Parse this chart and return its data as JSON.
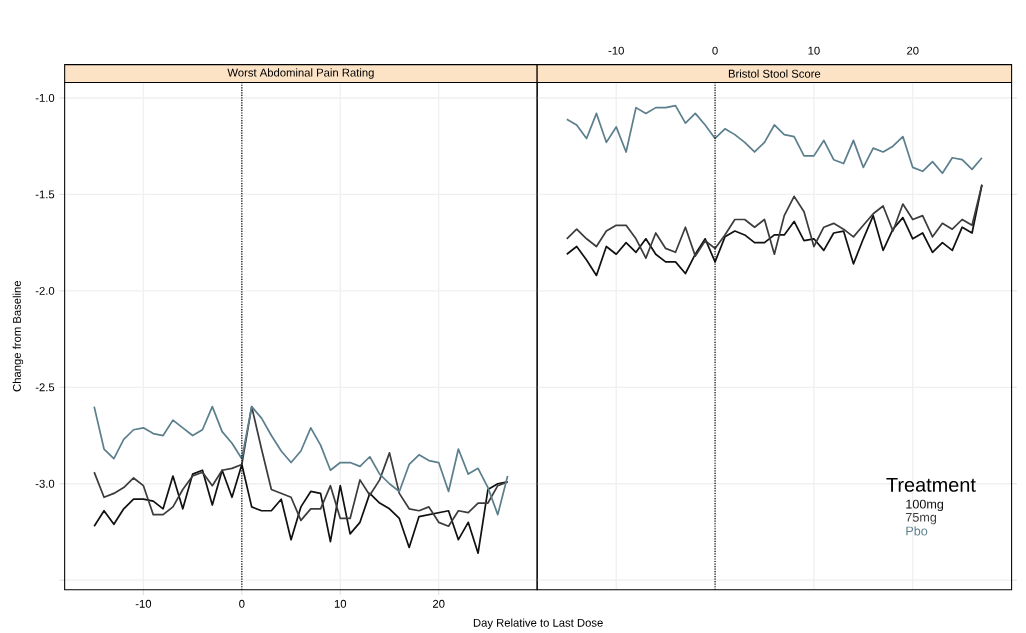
{
  "chart_data": [
    {
      "type": "line",
      "title": "Worst Abdominal Pain Rating",
      "xlabel": "Day Relative to Last Dose",
      "ylabel": "Change from Baseline",
      "x": [
        -15,
        -14,
        -13,
        -12,
        -11,
        -10,
        -9,
        -8,
        -7,
        -6,
        -5,
        -4,
        -3,
        -2,
        -1,
        0,
        1,
        2,
        3,
        4,
        5,
        6,
        7,
        8,
        9,
        10,
        11,
        12,
        13,
        14,
        15,
        16,
        17,
        18,
        19,
        20,
        21,
        22,
        23,
        24,
        25,
        26,
        27
      ],
      "xlim": [
        -18,
        30
      ],
      "xticks": [
        -10,
        0,
        10,
        20
      ],
      "ylim": [
        -3.55,
        -0.92
      ],
      "yticks": [
        {
          "value": -3.5,
          "label": null
        },
        {
          "value": -3.0,
          "label": "-3.0"
        },
        {
          "value": -2.5,
          "label": "-2.5"
        },
        {
          "value": -2.0,
          "label": "-2.0"
        },
        {
          "value": -1.5,
          "label": "-1.5"
        },
        {
          "value": -1.0,
          "label": "-1.0"
        }
      ],
      "grid": true,
      "ref_lines": [
        {
          "axis": "x",
          "value": 0,
          "line_style": "dotted",
          "color": "#000000"
        }
      ],
      "series": [
        {
          "color": "#111111",
          "values": [
            -3.22,
            -3.14,
            -3.21,
            -3.13,
            -3.08,
            -3.08,
            -3.09,
            -3.13,
            -2.96,
            -3.13,
            -2.95,
            -2.93,
            -3.11,
            -2.93,
            -3.07,
            -2.9,
            -3.12,
            -3.14,
            -3.14,
            -3.08,
            -3.29,
            -3.12,
            -3.04,
            -3.05,
            -3.3,
            -3.01,
            -3.26,
            -3.2,
            -3.05,
            -3.1,
            -3.13,
            -3.18,
            -3.33,
            -3.17,
            -3.16,
            -3.15,
            -3.14,
            -3.29,
            -3.2,
            -3.36,
            -3.03,
            -3.0,
            -2.99
          ]
        },
        {
          "color": "#3c3c3c",
          "values": [
            -2.94,
            -3.07,
            -3.05,
            -3.02,
            -2.97,
            -3.01,
            -3.16,
            -3.16,
            -3.12,
            -3.03,
            -2.96,
            -2.94,
            -3.01,
            -2.93,
            -2.92,
            -2.9,
            -2.6,
            -2.82,
            -3.03,
            -3.05,
            -3.07,
            -3.19,
            -3.13,
            -3.13,
            -3.01,
            -3.18,
            -3.18,
            -2.98,
            -3.06,
            -2.98,
            -2.84,
            -3.05,
            -3.13,
            -3.14,
            -3.12,
            -3.2,
            -3.22,
            -3.14,
            -3.15,
            -3.1,
            -3.1,
            -3.01,
            -2.99
          ]
        },
        {
          "color": "#5b7f8c",
          "values": [
            -2.6,
            -2.82,
            -2.87,
            -2.77,
            -2.72,
            -2.71,
            -2.74,
            -2.75,
            -2.67,
            -2.71,
            -2.75,
            -2.72,
            -2.6,
            -2.73,
            -2.79,
            -2.87,
            -2.6,
            -2.66,
            -2.75,
            -2.83,
            -2.89,
            -2.83,
            -2.71,
            -2.8,
            -2.93,
            -2.89,
            -2.89,
            -2.91,
            -2.86,
            -2.95,
            -3.0,
            -3.04,
            -2.9,
            -2.85,
            -2.88,
            -2.89,
            -3.04,
            -2.82,
            -2.95,
            -2.92,
            -3.02,
            -3.16,
            -2.96
          ]
        }
      ]
    },
    {
      "type": "line",
      "title": "Bristol Stool Score",
      "legend_title": "Treatment",
      "legend": "bottom right",
      "x": [
        -15,
        -14,
        -13,
        -12,
        -11,
        -10,
        -9,
        -8,
        -7,
        -6,
        -5,
        -4,
        -3,
        -2,
        -1,
        0,
        1,
        2,
        3,
        4,
        5,
        6,
        7,
        8,
        9,
        10,
        11,
        12,
        13,
        14,
        15,
        16,
        17,
        18,
        19,
        20,
        21,
        22,
        23,
        24,
        25,
        26,
        27
      ],
      "xlim": [
        -18,
        30
      ],
      "xticks": [
        -10,
        0,
        10,
        20
      ],
      "ylim": [
        -3.55,
        -0.92
      ],
      "yticks": [
        {
          "value": -3.5,
          "label": null
        },
        {
          "value": -3.0,
          "label": null
        },
        {
          "value": -2.5,
          "label": null
        },
        {
          "value": -2.0,
          "label": null
        },
        {
          "value": -1.5,
          "label": null
        },
        {
          "value": -1.0,
          "label": null
        }
      ],
      "tick_labels": "x",
      "grid": true,
      "ref_lines": [
        {
          "axis": "x",
          "value": 0,
          "line_style": "dotted",
          "color": "#000000"
        }
      ],
      "series": [
        {
          "name": "100mg",
          "color": "#111111",
          "values": [
            -1.81,
            -1.77,
            -1.84,
            -1.92,
            -1.77,
            -1.81,
            -1.75,
            -1.8,
            -1.73,
            -1.81,
            -1.85,
            -1.85,
            -1.91,
            -1.81,
            -1.73,
            -1.85,
            -1.72,
            -1.69,
            -1.71,
            -1.75,
            -1.75,
            -1.71,
            -1.71,
            -1.64,
            -1.74,
            -1.73,
            -1.79,
            -1.7,
            -1.69,
            -1.86,
            -1.73,
            -1.61,
            -1.79,
            -1.68,
            -1.62,
            -1.73,
            -1.7,
            -1.8,
            -1.75,
            -1.79,
            -1.67,
            -1.7,
            -1.45
          ]
        },
        {
          "name": "75mg",
          "color": "#3c3c3c",
          "values": [
            -1.73,
            -1.68,
            -1.73,
            -1.77,
            -1.69,
            -1.66,
            -1.66,
            -1.73,
            -1.83,
            -1.7,
            -1.78,
            -1.8,
            -1.67,
            -1.82,
            -1.74,
            -1.78,
            -1.71,
            -1.63,
            -1.63,
            -1.67,
            -1.63,
            -1.81,
            -1.61,
            -1.51,
            -1.59,
            -1.77,
            -1.67,
            -1.65,
            -1.68,
            -1.72,
            -1.66,
            -1.6,
            -1.56,
            -1.69,
            -1.55,
            -1.63,
            -1.61,
            -1.72,
            -1.65,
            -1.68,
            -1.63,
            -1.66,
            -1.45
          ]
        },
        {
          "name": "Pbo",
          "color": "#5b7f8c",
          "values": [
            -1.11,
            -1.14,
            -1.21,
            -1.08,
            -1.23,
            -1.15,
            -1.28,
            -1.05,
            -1.08,
            -1.05,
            -1.05,
            -1.04,
            -1.13,
            -1.08,
            -1.14,
            -1.21,
            -1.16,
            -1.19,
            -1.23,
            -1.28,
            -1.23,
            -1.14,
            -1.19,
            -1.2,
            -1.3,
            -1.3,
            -1.22,
            -1.32,
            -1.34,
            -1.22,
            -1.36,
            -1.26,
            -1.28,
            -1.25,
            -1.2,
            -1.36,
            -1.38,
            -1.33,
            -1.39,
            -1.31,
            -1.32,
            -1.37,
            -1.31
          ]
        }
      ]
    }
  ]
}
